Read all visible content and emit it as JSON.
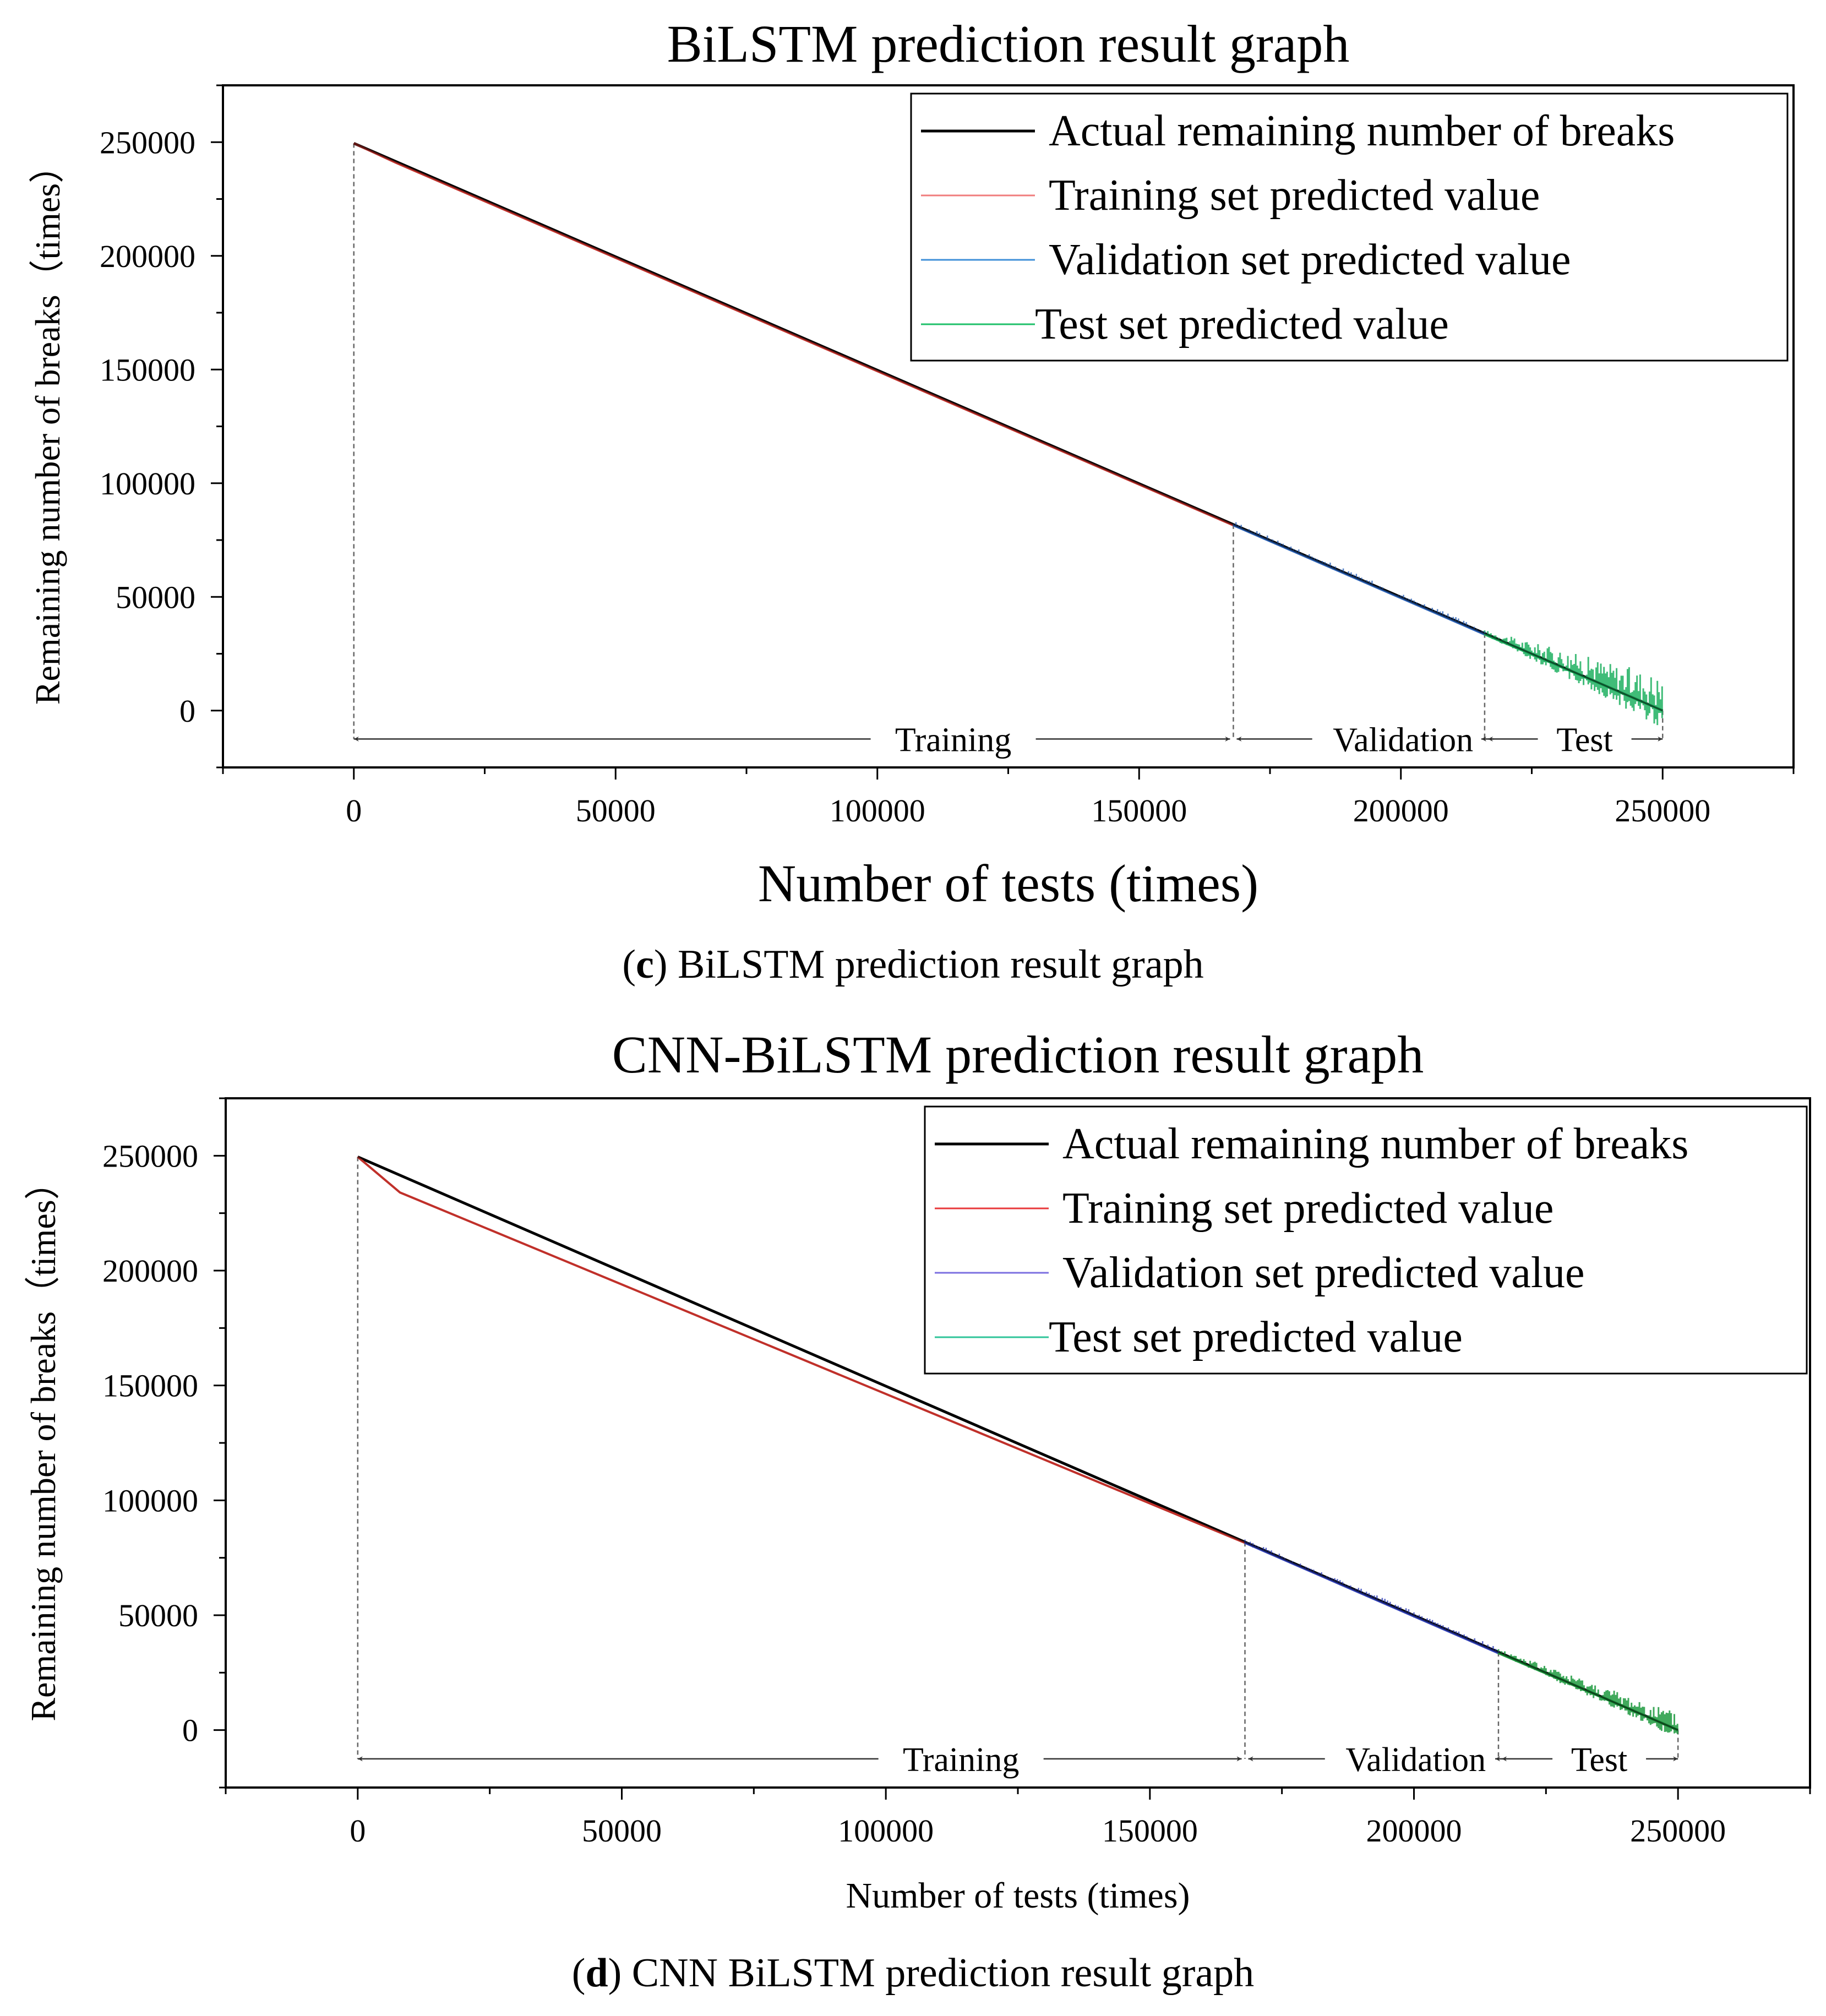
{
  "chart_data": [
    {
      "type": "line",
      "title": "BiLSTM prediction result graph",
      "xlabel": "Number of tests (times)",
      "ylabel": "Remaining number of breaks（times）",
      "xlim": [
        -25000,
        275000
      ],
      "ylim": [
        -25000,
        275000
      ],
      "xticks": [
        0,
        50000,
        100000,
        150000,
        200000,
        250000
      ],
      "yticks": [
        0,
        50000,
        100000,
        150000,
        200000,
        250000
      ],
      "legend": [
        {
          "label": "Actual remaining number of breaks",
          "color": "#000000"
        },
        {
          "label": "Training set predicted value",
          "color": "#f07c7c"
        },
        {
          "label": "Validation  set predicted value",
          "color": "#3f8fd8"
        },
        {
          "label": "Test set predicted value",
          "color": "#1fc06a"
        }
      ],
      "legend_position": "top-right",
      "series": [
        {
          "name": "Actual remaining number of breaks",
          "x": [
            0,
            250000
          ],
          "y": [
            249500,
            0
          ],
          "color": "#000000"
        },
        {
          "name": "Training set predicted value",
          "x": [
            0,
            8000,
            168000
          ],
          "y": [
            249500,
            241000,
            81500
          ],
          "color": "#c0302a"
        },
        {
          "name": "Validation  set predicted value",
          "x": [
            168000,
            216000
          ],
          "y": [
            81500,
            33500
          ],
          "color": "#2a62b8"
        },
        {
          "name": "Test set predicted value",
          "x": [
            216000,
            250000
          ],
          "y": [
            33500,
            0
          ],
          "color": "#1fb060"
        }
      ],
      "boundaries": [
        0,
        168000,
        216000,
        250000
      ],
      "region_labels": [
        "Training",
        "Validation",
        "Test"
      ],
      "caption_letter": "c",
      "caption_text": " BiLSTM prediction result graph"
    },
    {
      "type": "line",
      "title": "CNN-BiLSTM prediction result graph",
      "xlabel": "Number of tests (times)",
      "ylabel": "Remaining number of breaks（times）",
      "xlim": [
        -25000,
        275000
      ],
      "ylim": [
        -25000,
        275000
      ],
      "xticks": [
        0,
        50000,
        100000,
        150000,
        200000,
        250000
      ],
      "yticks": [
        0,
        50000,
        100000,
        150000,
        200000,
        250000
      ],
      "legend": [
        {
          "label": "Actual remaining number of breaks",
          "color": "#000000"
        },
        {
          "label": "Training set predicted value",
          "color": "#e8383a"
        },
        {
          "label": "Validation  set predicted value",
          "color": "#7b6fe0"
        },
        {
          "label": "Test set predicted value",
          "color": "#2fc49a"
        }
      ],
      "legend_position": "top-right",
      "series": [
        {
          "name": "Actual remaining number of breaks",
          "x": [
            0,
            250000
          ],
          "y": [
            249500,
            0
          ],
          "color": "#000000"
        },
        {
          "name": "Training set predicted value",
          "x": [
            0,
            8000,
            168000
          ],
          "y": [
            249500,
            234000,
            81500
          ],
          "color": "#c0302a"
        },
        {
          "name": "Validation  set predicted value",
          "x": [
            168000,
            216000
          ],
          "y": [
            81500,
            33500
          ],
          "color": "#2f3fb8"
        },
        {
          "name": "Test set predicted value",
          "x": [
            216000,
            250000
          ],
          "y": [
            33500,
            0
          ],
          "color": "#1f9a40"
        }
      ],
      "boundaries": [
        0,
        168000,
        216000,
        250000
      ],
      "region_labels": [
        "Training",
        "Validation",
        "Test"
      ],
      "caption_letter": "d",
      "caption_text": " CNN BiLSTM prediction result graph"
    }
  ]
}
